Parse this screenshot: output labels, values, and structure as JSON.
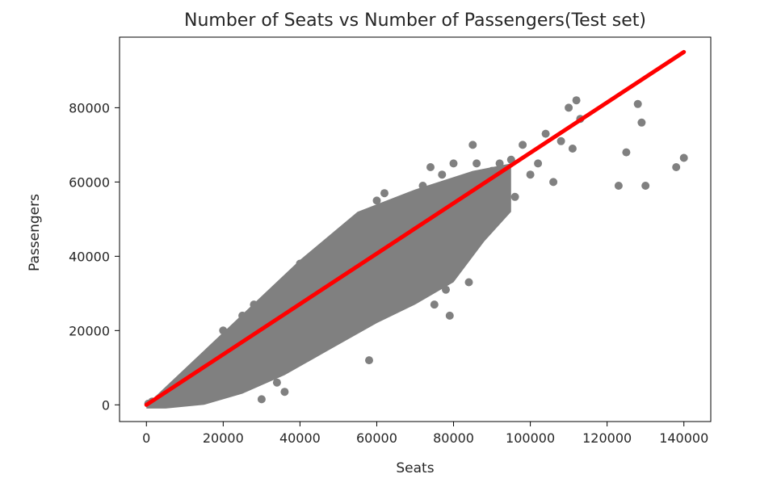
{
  "chart_data": {
    "type": "scatter",
    "title": "Number of Seats vs Number of Passengers(Test set)",
    "xlabel": "Seats",
    "ylabel": "Passengers",
    "xlim": [
      -7000,
      147000
    ],
    "ylim": [
      -4500,
      99000
    ],
    "xticks": [
      0,
      20000,
      40000,
      60000,
      80000,
      100000,
      120000,
      140000
    ],
    "yticks": [
      0,
      20000,
      40000,
      60000,
      80000
    ],
    "xtick_labels": [
      "0",
      "20000",
      "40000",
      "60000",
      "80000",
      "100000",
      "120000",
      "140000"
    ],
    "ytick_labels": [
      "0",
      "20000",
      "40000",
      "60000",
      "80000"
    ],
    "grid": false,
    "colors": {
      "points": "#808080",
      "fit_line": "#ff0000"
    },
    "series": [
      {
        "kind": "scatter",
        "points": [
          [
            500,
            300
          ],
          [
            1500,
            900
          ],
          [
            3000,
            1500
          ],
          [
            5000,
            2500
          ],
          [
            8000,
            3800
          ],
          [
            12000,
            5500
          ],
          [
            15000,
            12500
          ],
          [
            18000,
            9000
          ],
          [
            20000,
            20000
          ],
          [
            22000,
            9000
          ],
          [
            25000,
            24000
          ],
          [
            28000,
            27000
          ],
          [
            30000,
            1500
          ],
          [
            30000,
            15000
          ],
          [
            32000,
            10000
          ],
          [
            34000,
            6000
          ],
          [
            36000,
            3500
          ],
          [
            38000,
            13000
          ],
          [
            40000,
            38000
          ],
          [
            42000,
            20000
          ],
          [
            45000,
            16000
          ],
          [
            48000,
            44000
          ],
          [
            50000,
            25000
          ],
          [
            52000,
            19000
          ],
          [
            55000,
            50000
          ],
          [
            57000,
            39000
          ],
          [
            58000,
            12000
          ],
          [
            60000,
            55000
          ],
          [
            62000,
            57000
          ],
          [
            65000,
            28000
          ],
          [
            67000,
            35000
          ],
          [
            70000,
            48000
          ],
          [
            72000,
            59000
          ],
          [
            74000,
            64000
          ],
          [
            75000,
            27000
          ],
          [
            77000,
            62000
          ],
          [
            78000,
            31000
          ],
          [
            79000,
            24000
          ],
          [
            80000,
            65000
          ],
          [
            81000,
            40000
          ],
          [
            84000,
            33000
          ],
          [
            85000,
            70000
          ],
          [
            86000,
            65000
          ],
          [
            88000,
            55000
          ],
          [
            90000,
            63000
          ],
          [
            92000,
            65000
          ],
          [
            93000,
            52000
          ],
          [
            95000,
            66000
          ],
          [
            96000,
            56000
          ],
          [
            98000,
            70000
          ],
          [
            100000,
            62000
          ],
          [
            102000,
            65000
          ],
          [
            104000,
            73000
          ],
          [
            106000,
            60000
          ],
          [
            108000,
            71000
          ],
          [
            110000,
            80000
          ],
          [
            111000,
            69000
          ],
          [
            112000,
            82000
          ],
          [
            113000,
            77000
          ],
          [
            123000,
            59000
          ],
          [
            125000,
            68000
          ],
          [
            128000,
            81000
          ],
          [
            129000,
            76000
          ],
          [
            130000,
            59000
          ],
          [
            138000,
            64000
          ],
          [
            140000,
            66500
          ]
        ]
      },
      {
        "kind": "fit_line",
        "x": [
          0,
          140000
        ],
        "y": [
          0,
          95000
        ]
      }
    ]
  }
}
